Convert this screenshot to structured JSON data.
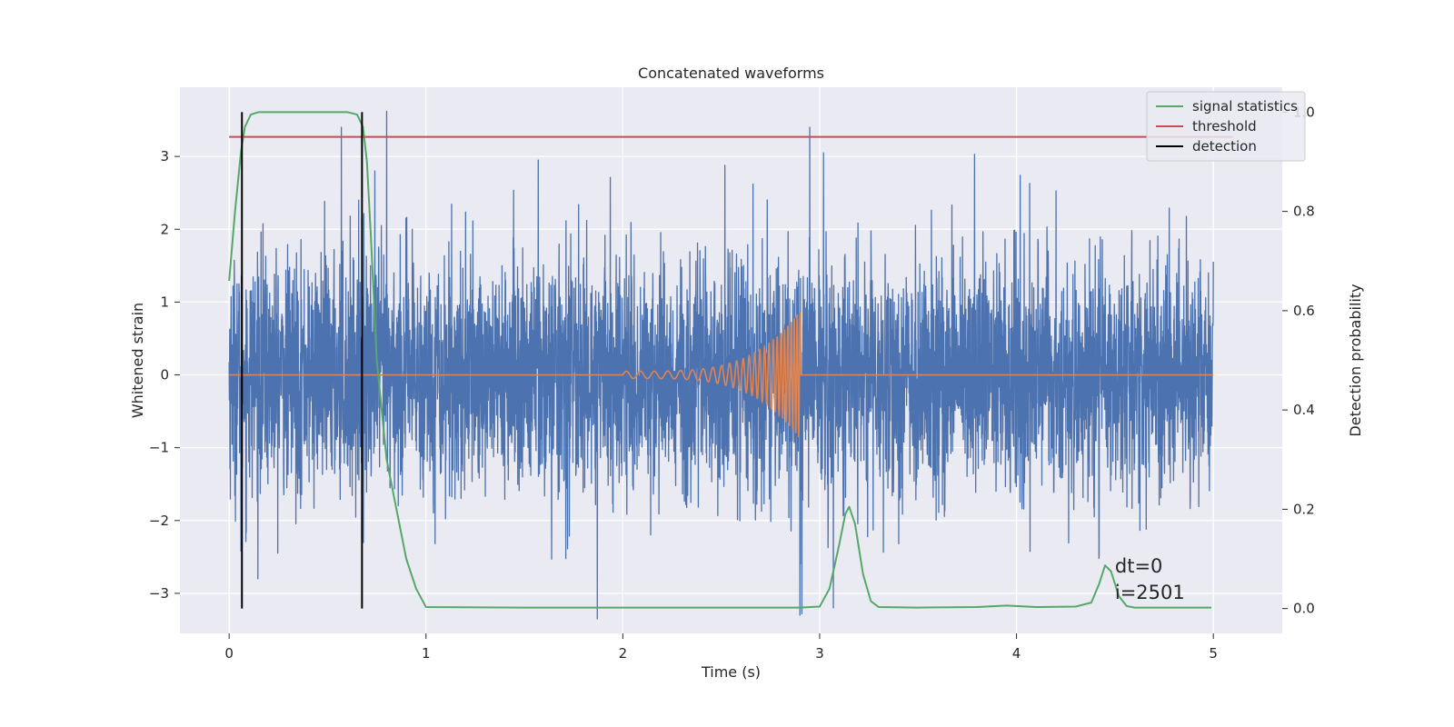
{
  "chart_data": {
    "type": "line",
    "title": "Concatenated waveforms",
    "xlabel": "Time (s)",
    "ylabel": "Whitened strain",
    "ylabel_right": "Detection probability",
    "xlim": [
      -0.25,
      5.35
    ],
    "ylim": [
      -3.55,
      3.95
    ],
    "ylim_right": [
      -0.05,
      1.05
    ],
    "xticks": [
      0,
      1,
      2,
      3,
      4,
      5
    ],
    "yticks": [
      -3,
      -2,
      -1,
      0,
      1,
      2,
      3
    ],
    "yticks_right": [
      0.0,
      0.2,
      0.4,
      0.6,
      0.8,
      1.0
    ],
    "ytick_labels": [
      "−3",
      "−2",
      "−1",
      "0",
      "1",
      "2",
      "3"
    ],
    "yticks_right_labels": [
      "0.0",
      "0.2",
      "0.4",
      "0.6",
      "0.8",
      "1.0"
    ],
    "grid": true,
    "legend_position": "top-right",
    "series": [
      {
        "name": "",
        "axis": "left",
        "color": "#4c72b0",
        "description": "whitened noise strain, 0 to 5 s",
        "noise": {
          "x_start": 0,
          "x_end": 5,
          "count": 5000,
          "seed": 1234,
          "sigma": 0.8
        },
        "spikes": [
          [
            0.57,
            3.4
          ],
          [
            0.8,
            3.62
          ],
          [
            0.74,
            2.8
          ],
          [
            1.57,
            2.95
          ],
          [
            2.95,
            3.4
          ],
          [
            3.02,
            3.05
          ],
          [
            1.87,
            -3.35
          ],
          [
            2.9,
            -3.3
          ],
          [
            2.91,
            -3.28
          ],
          [
            0.06,
            -2.42
          ],
          [
            3.07,
            -3.2
          ]
        ]
      },
      {
        "name": "",
        "axis": "left",
        "color": "#dd8452",
        "description": "injected chirp signal",
        "chirp": {
          "x_start": 2.0,
          "x_merge": 2.9,
          "x_end": 5.0,
          "amp_start": 0.05,
          "amp_peak": 0.88,
          "freq_start": 14,
          "freq_end": 70
        }
      },
      {
        "name": "signal statistics",
        "axis": "right",
        "color": "#55a868",
        "x": [
          0,
          0.03,
          0.06,
          0.08,
          0.11,
          0.15,
          0.2,
          0.4,
          0.6,
          0.65,
          0.68,
          0.7,
          0.72,
          0.75,
          0.8,
          0.9,
          0.95,
          1.0,
          1.5,
          2.0,
          2.5,
          2.9,
          3.0,
          3.05,
          3.1,
          3.13,
          3.15,
          3.18,
          3.22,
          3.26,
          3.3,
          3.5,
          3.8,
          3.95,
          4.1,
          4.3,
          4.38,
          4.42,
          4.45,
          4.48,
          4.52,
          4.56,
          4.6,
          4.8,
          4.99
        ],
        "y": [
          0.66,
          0.8,
          0.92,
          0.97,
          0.995,
          1.0,
          1.0,
          1.0,
          1.0,
          0.995,
          0.97,
          0.9,
          0.75,
          0.5,
          0.3,
          0.1,
          0.04,
          0.003,
          0.002,
          0.002,
          0.002,
          0.002,
          0.004,
          0.04,
          0.13,
          0.19,
          0.205,
          0.17,
          0.07,
          0.015,
          0.003,
          0.002,
          0.003,
          0.006,
          0.003,
          0.004,
          0.012,
          0.05,
          0.087,
          0.075,
          0.025,
          0.005,
          0.002,
          0.002,
          0.002
        ]
      },
      {
        "name": "threshold",
        "axis": "right",
        "color": "#c44e52",
        "x": [
          0,
          5.1
        ],
        "y": [
          0.95,
          0.95
        ]
      },
      {
        "name": "detection",
        "axis": "right",
        "color": "#000000",
        "vlines": [
          0.065,
          0.675
        ],
        "y_range": [
          0.0,
          1.0
        ]
      }
    ],
    "annotations": [
      "dt=0",
      "i=2501"
    ]
  }
}
